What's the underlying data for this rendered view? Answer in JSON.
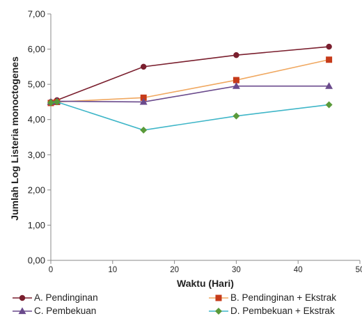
{
  "chart_data": {
    "type": "line",
    "title": "",
    "xlabel": "Waktu (Hari)",
    "ylabel": "Jumlah Log Listeria monoctogenes",
    "x": [
      0,
      1,
      15,
      30,
      45
    ],
    "xlim": [
      0,
      50
    ],
    "ylim": [
      0,
      7
    ],
    "xticks": [
      0,
      10,
      20,
      30,
      40,
      50
    ],
    "yticks": [
      0,
      1,
      2,
      3,
      4,
      5,
      6,
      7
    ],
    "ytick_labels": [
      "0,00",
      "1,00",
      "2,00",
      "3,00",
      "4,00",
      "5,00",
      "6,00",
      "7,00"
    ],
    "xtick_labels": [
      "0",
      "10",
      "20",
      "30",
      "40",
      "50"
    ],
    "grid": false,
    "legend": "bottom",
    "series": [
      {
        "name": "A. Pendinginan",
        "values": [
          4.5,
          4.55,
          5.5,
          5.83,
          6.07
        ],
        "color": "#7a1f2e",
        "marker": "circle"
      },
      {
        "name": "B. Pendinginan + Ekstrak",
        "values": [
          4.47,
          4.5,
          4.62,
          5.12,
          5.7
        ],
        "color": "#f0a860",
        "marker_color": "#c63b1a",
        "marker": "square"
      },
      {
        "name": "C. Pembekuan",
        "values": [
          4.5,
          4.52,
          4.5,
          4.95,
          4.95
        ],
        "color": "#6a4a8c",
        "marker": "triangle"
      },
      {
        "name": "D. Pembekuan + Ekstrak",
        "values": [
          4.48,
          4.5,
          3.7,
          4.1,
          4.42
        ],
        "color": "#3fb6c8",
        "marker_color": "#5a9a3a",
        "marker": "diamond"
      }
    ]
  }
}
